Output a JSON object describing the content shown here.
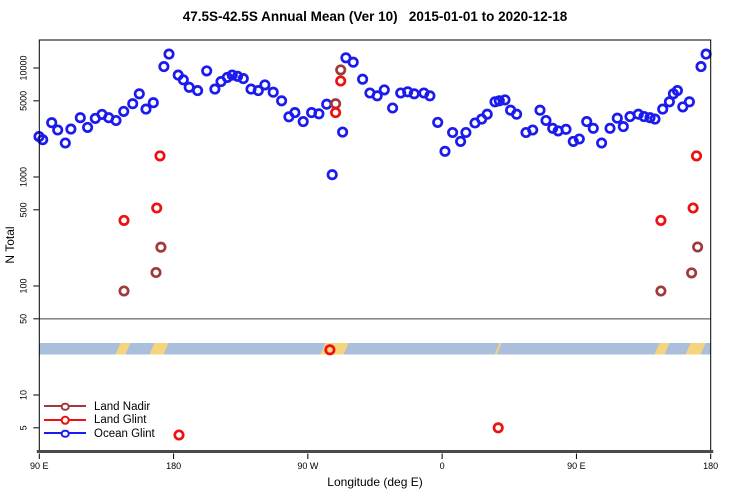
{
  "title": "47.5S-42.5S Annual Mean (Ver 10)   2015-01-01 to 2020-12-18",
  "axes": {
    "x": {
      "label": "Longitude (deg E)",
      "ticks": [
        {
          "value": 90,
          "label": "90 E"
        },
        {
          "value": 180,
          "label": "180"
        },
        {
          "value": 270,
          "label": "90 W"
        },
        {
          "value": 360,
          "label": "0"
        },
        {
          "value": 450,
          "label": "90 E"
        },
        {
          "value": 540,
          "label": "180"
        }
      ]
    },
    "y": {
      "label": "N Total",
      "ticks": [
        {
          "value": 10000,
          "label": "10000"
        },
        {
          "value": 5000,
          "label": "5000"
        },
        {
          "value": 1000,
          "label": "1000"
        },
        {
          "value": 500,
          "label": "500"
        },
        {
          "value": 100,
          "label": "100"
        },
        {
          "value": 50,
          "label": "50"
        },
        {
          "value": 10,
          "label": "10"
        },
        {
          "value": 5,
          "label": "5"
        }
      ]
    }
  },
  "legend": {
    "items": [
      {
        "label": "Land Nadir",
        "color": "#a03a3a"
      },
      {
        "label": "Land Glint",
        "color": "#ee1111"
      },
      {
        "label": "Ocean Glint",
        "color": "#1b1bee"
      }
    ]
  },
  "colors": {
    "plot_border": "#000000",
    "bottom_axis": "#4a4a4a",
    "threshold_line": "#8a8a8a",
    "map_strip_ocean": "#a9bfdc",
    "map_strip_land": "#f6d47e"
  },
  "chart_data": {
    "type": "scatter",
    "title": "47.5S-42.5S Annual Mean (Ver 10)   2015-01-01 to 2020-12-18",
    "xlabel": "Longitude (deg E)",
    "ylabel": "N Total",
    "x_axis_note": "longitude in extended degrees east 90..540 (axis wraps 90E-180-90W-0-90E-180)",
    "xlim": [
      90,
      540
    ],
    "y_log": true,
    "ylim": [
      3.5,
      16000
    ],
    "grid": false,
    "legend_position": "bottom-left",
    "threshold_n": 50,
    "map_strip": {
      "description": "ocean/land strip along latitude band",
      "land_segments_lon": [
        [
          142.7,
          149.4
        ],
        [
          165.5,
          174.9
        ],
        [
          280.1,
          295.6
        ],
        [
          396.8,
          398.2
        ],
        [
          504.0,
          510.7
        ],
        [
          524.8,
          534.9
        ]
      ]
    },
    "series": [
      {
        "name": "Land Nadir",
        "color": "#a03a3a",
        "points": [
          [
            146.8,
            90
          ],
          [
            168.2,
            133
          ],
          [
            171.5,
            227
          ],
          [
            288.6,
            4700
          ],
          [
            292,
            9600
          ],
          [
            506.6,
            90
          ],
          [
            527.2,
            132
          ],
          [
            531.2,
            228
          ]
        ]
      },
      {
        "name": "Land Glint",
        "color": "#ee1111",
        "points": [
          [
            146.8,
            400
          ],
          [
            168.7,
            520
          ],
          [
            170.9,
            1560
          ],
          [
            183.6,
            4.3
          ],
          [
            284.8,
            26
          ],
          [
            288.6,
            3900
          ],
          [
            292,
            7600
          ],
          [
            397.6,
            5
          ],
          [
            506.6,
            400
          ],
          [
            528.2,
            520
          ],
          [
            530.5,
            1560
          ]
        ]
      },
      {
        "name": "Ocean Glint",
        "color": "#1b1bee",
        "points": [
          [
            89.8,
            2350
          ],
          [
            92.3,
            2200
          ],
          [
            98.3,
            3150
          ],
          [
            102.3,
            2700
          ],
          [
            107.4,
            2050
          ],
          [
            111.2,
            2750
          ],
          [
            117.5,
            3500
          ],
          [
            122.4,
            2850
          ],
          [
            127.5,
            3450
          ],
          [
            132,
            3750
          ],
          [
            136.5,
            3500
          ],
          [
            141.4,
            3300
          ],
          [
            146.6,
            4000
          ],
          [
            152.6,
            4700
          ],
          [
            157,
            5800
          ],
          [
            161.5,
            4200
          ],
          [
            166.4,
            4800
          ],
          [
            173.5,
            10300
          ],
          [
            176.9,
            13400
          ],
          [
            183.1,
            8600
          ],
          [
            186.5,
            7800
          ],
          [
            190.5,
            6650
          ],
          [
            196.1,
            6200
          ],
          [
            202.2,
            9400
          ],
          [
            207.7,
            6400
          ],
          [
            211.8,
            7500
          ],
          [
            216,
            8200
          ],
          [
            219.3,
            8600
          ],
          [
            222.9,
            8400
          ],
          [
            226.7,
            8000
          ],
          [
            231.9,
            6400
          ],
          [
            236.8,
            6200
          ],
          [
            241.2,
            7000
          ],
          [
            246.8,
            6000
          ],
          [
            252.4,
            5000
          ],
          [
            257.3,
            3570
          ],
          [
            261.3,
            3900
          ],
          [
            266.9,
            3220
          ],
          [
            272.5,
            3900
          ],
          [
            277.4,
            3800
          ],
          [
            282.6,
            4650
          ],
          [
            286.3,
            1050
          ],
          [
            293.3,
            2580
          ],
          [
            295.5,
            12400
          ],
          [
            300.4,
            11300
          ],
          [
            306.7,
            7900
          ],
          [
            311.6,
            5900
          ],
          [
            316.5,
            5560
          ],
          [
            321.2,
            6300
          ],
          [
            326.8,
            4300
          ],
          [
            332.2,
            5900
          ],
          [
            336.9,
            6050
          ],
          [
            341.3,
            5800
          ],
          [
            347.8,
            5900
          ],
          [
            351.8,
            5560
          ],
          [
            357,
            3170
          ],
          [
            361.9,
            1720
          ],
          [
            367,
            2560
          ],
          [
            372.4,
            2120
          ],
          [
            375.9,
            2560
          ],
          [
            382,
            3130
          ],
          [
            386.5,
            3400
          ],
          [
            390.2,
            3770
          ],
          [
            395.4,
            4900
          ],
          [
            398.3,
            5000
          ],
          [
            402.1,
            5100
          ],
          [
            405.9,
            4100
          ],
          [
            409.9,
            3770
          ],
          [
            416.2,
            2560
          ],
          [
            420.7,
            2700
          ],
          [
            425.6,
            4100
          ],
          [
            429.6,
            3300
          ],
          [
            434.1,
            2800
          ],
          [
            437.8,
            2650
          ],
          [
            443,
            2740
          ],
          [
            447.9,
            2120
          ],
          [
            451.9,
            2230
          ],
          [
            456.9,
            3220
          ],
          [
            461.3,
            2800
          ],
          [
            466.9,
            2050
          ],
          [
            472.5,
            2800
          ],
          [
            477.4,
            3460
          ],
          [
            481.4,
            2900
          ],
          [
            485.9,
            3580
          ],
          [
            491.5,
            3770
          ],
          [
            495.3,
            3580
          ],
          [
            499.3,
            3500
          ],
          [
            502.7,
            3400
          ],
          [
            507.8,
            4200
          ],
          [
            512.3,
            4900
          ],
          [
            515,
            5800
          ],
          [
            517.7,
            6200
          ],
          [
            521.3,
            4400
          ],
          [
            525.7,
            4900
          ],
          [
            533.5,
            10300
          ],
          [
            536.9,
            13400
          ]
        ]
      }
    ]
  }
}
